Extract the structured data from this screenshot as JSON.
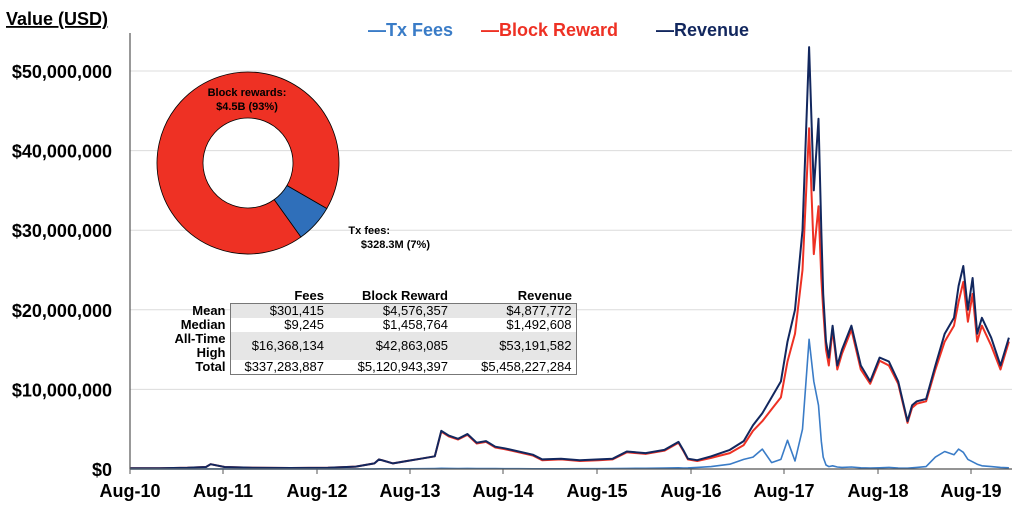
{
  "chart_data": [
    {
      "type": "line",
      "title": "",
      "ylabel": "Value (USD)",
      "xlabel": "",
      "ylim": [
        0,
        53500000
      ],
      "yticks": [
        0,
        10000000,
        20000000,
        30000000,
        40000000,
        50000000
      ],
      "ytick_labels": [
        "$0",
        "$10,000,000",
        "$20,000,000",
        "$30,000,000",
        "$40,000,000",
        "$50,000,000"
      ],
      "xlim": [
        2010.583,
        2019.99
      ],
      "xticks": [
        2010.583,
        2011.583,
        2012.583,
        2013.583,
        2014.583,
        2015.583,
        2016.583,
        2017.583,
        2018.583,
        2019.583
      ],
      "xtick_labels": [
        "Aug-10",
        "Aug-11",
        "Aug-12",
        "Aug-13",
        "Aug-14",
        "Aug-15",
        "Aug-16",
        "Aug-17",
        "Aug-18",
        "Aug-19"
      ],
      "grid": true,
      "legend_position": "top-center",
      "legend": [
        "Tx Fees",
        "Block Reward",
        "Revenue"
      ],
      "colors": {
        "Tx Fees": "#3a7cc7",
        "Block Reward": "#ee3124",
        "Revenue": "#12275e"
      },
      "x": [
        2010.583,
        2010.9,
        2011.2,
        2011.4,
        2011.45,
        2011.6,
        2011.9,
        2012.3,
        2012.7,
        2013.0,
        2013.2,
        2013.25,
        2013.4,
        2013.55,
        2013.7,
        2013.85,
        2013.92,
        2014.0,
        2014.1,
        2014.2,
        2014.3,
        2014.4,
        2014.5,
        2014.6,
        2014.75,
        2014.9,
        2015.0,
        2015.2,
        2015.4,
        2015.6,
        2015.75,
        2015.9,
        2016.1,
        2016.3,
        2016.45,
        2016.5,
        2016.55,
        2016.65,
        2016.8,
        2017.0,
        2017.15,
        2017.25,
        2017.35,
        2017.45,
        2017.55,
        2017.62,
        2017.7,
        2017.78,
        2017.85,
        2017.9,
        2017.95,
        2017.98,
        2018.0,
        2018.03,
        2018.06,
        2018.1,
        2018.15,
        2018.2,
        2018.3,
        2018.4,
        2018.5,
        2018.6,
        2018.7,
        2018.8,
        2018.9,
        2018.95,
        2019.0,
        2019.1,
        2019.2,
        2019.3,
        2019.4,
        2019.45,
        2019.5,
        2019.55,
        2019.6,
        2019.65,
        2019.7,
        2019.8,
        2019.9,
        2019.99
      ],
      "series": [
        {
          "name": "Revenue",
          "values": [
            100000,
            100000,
            150000,
            250000,
            600000,
            250000,
            150000,
            120000,
            150000,
            300000,
            700000,
            1200000,
            700000,
            1000000,
            1300000,
            1600000,
            4800000,
            4200000,
            3800000,
            4400000,
            3300000,
            3500000,
            2800000,
            2600000,
            2200000,
            1800000,
            1200000,
            1300000,
            1100000,
            1200000,
            1300000,
            2200000,
            2000000,
            2400000,
            3400000,
            2400000,
            1300000,
            1100000,
            1600000,
            2400000,
            3500000,
            5500000,
            7000000,
            9000000,
            11000000,
            16000000,
            20000000,
            30000000,
            53000000,
            35000000,
            44000000,
            30000000,
            22000000,
            16000000,
            14000000,
            18000000,
            13000000,
            15000000,
            18000000,
            13000000,
            11000000,
            14000000,
            13500000,
            11000000,
            6000000,
            8000000,
            8500000,
            8800000,
            13000000,
            17000000,
            19000000,
            23000000,
            25500000,
            20000000,
            24000000,
            17000000,
            19000000,
            16500000,
            13000000,
            16500000
          ]
        },
        {
          "name": "Block Reward",
          "values": [
            100000,
            100000,
            150000,
            250000,
            600000,
            250000,
            150000,
            120000,
            150000,
            300000,
            700000,
            1200000,
            700000,
            1000000,
            1300000,
            1600000,
            4700000,
            4100000,
            3700000,
            4300000,
            3200000,
            3400000,
            2700000,
            2500000,
            2100000,
            1700000,
            1100000,
            1200000,
            1000000,
            1100000,
            1200000,
            2100000,
            1900000,
            2300000,
            3300000,
            2300000,
            1200000,
            1000000,
            1400000,
            2000000,
            3000000,
            4800000,
            6000000,
            7500000,
            9000000,
            13500000,
            17000000,
            25000000,
            42800000,
            27000000,
            33000000,
            24000000,
            20000000,
            15000000,
            13000000,
            17500000,
            12500000,
            14500000,
            17500000,
            12500000,
            10700000,
            13600000,
            13000000,
            10700000,
            5800000,
            7700000,
            8200000,
            8500000,
            12500000,
            16000000,
            18000000,
            21000000,
            23500000,
            18500000,
            22000000,
            16000000,
            18000000,
            15500000,
            12500000,
            16000000
          ]
        },
        {
          "name": "Tx Fees",
          "values": [
            0,
            0,
            5000,
            8000,
            15000,
            8000,
            5000,
            5000,
            5000,
            8000,
            15000,
            25000,
            20000,
            25000,
            40000,
            60000,
            90000,
            70000,
            60000,
            70000,
            55000,
            55000,
            45000,
            40000,
            35000,
            30000,
            25000,
            30000,
            35000,
            40000,
            50000,
            80000,
            90000,
            120000,
            150000,
            130000,
            140000,
            200000,
            300000,
            600000,
            1200000,
            1500000,
            2500000,
            800000,
            1200000,
            3600000,
            1000000,
            5000000,
            16300000,
            11000000,
            8000000,
            3500000,
            1500000,
            500000,
            300000,
            400000,
            250000,
            200000,
            250000,
            150000,
            120000,
            150000,
            200000,
            120000,
            100000,
            150000,
            200000,
            300000,
            1500000,
            2200000,
            1800000,
            2500000,
            2100000,
            1200000,
            900000,
            600000,
            400000,
            300000,
            200000,
            150000
          ]
        }
      ]
    },
    {
      "type": "pie",
      "subtype": "donut",
      "title": "",
      "labels": [
        "Block rewards",
        "Tx fees"
      ],
      "values": [
        4500000000,
        328300000
      ],
      "percent": [
        93,
        7
      ],
      "value_labels": [
        "Block rewards:\n$4.5B (93%)",
        "Tx fees:\n$328.3M (7%)"
      ],
      "colors": [
        "#ee3124",
        "#2f6fba"
      ]
    },
    {
      "type": "table",
      "columns": [
        "",
        "Fees",
        "Block Reward",
        "Revenue"
      ],
      "rows": [
        [
          "Mean",
          "$301,415",
          "$4,576,357",
          "$4,877,772"
        ],
        [
          "Median",
          "$9,245",
          "$1,458,764",
          "$1,492,608"
        ],
        [
          "All-Time High",
          "$16,368,134",
          "$42,863,085",
          "$53,191,582"
        ],
        [
          "Total",
          "$337,283,887",
          "$5,120,943,397",
          "$5,458,227,284"
        ]
      ]
    }
  ],
  "labels": {
    "ylabel": "Value (USD)",
    "legend_tx_fees": "—Tx Fees",
    "legend_block_reward": "—Block Reward",
    "legend_revenue": "—Revenue",
    "donut_block_line1": "Block rewards:",
    "donut_block_line2": "$4.5B (93%)",
    "donut_fees_line1": "Tx fees:",
    "donut_fees_line2": "$328.3M (7%)"
  }
}
